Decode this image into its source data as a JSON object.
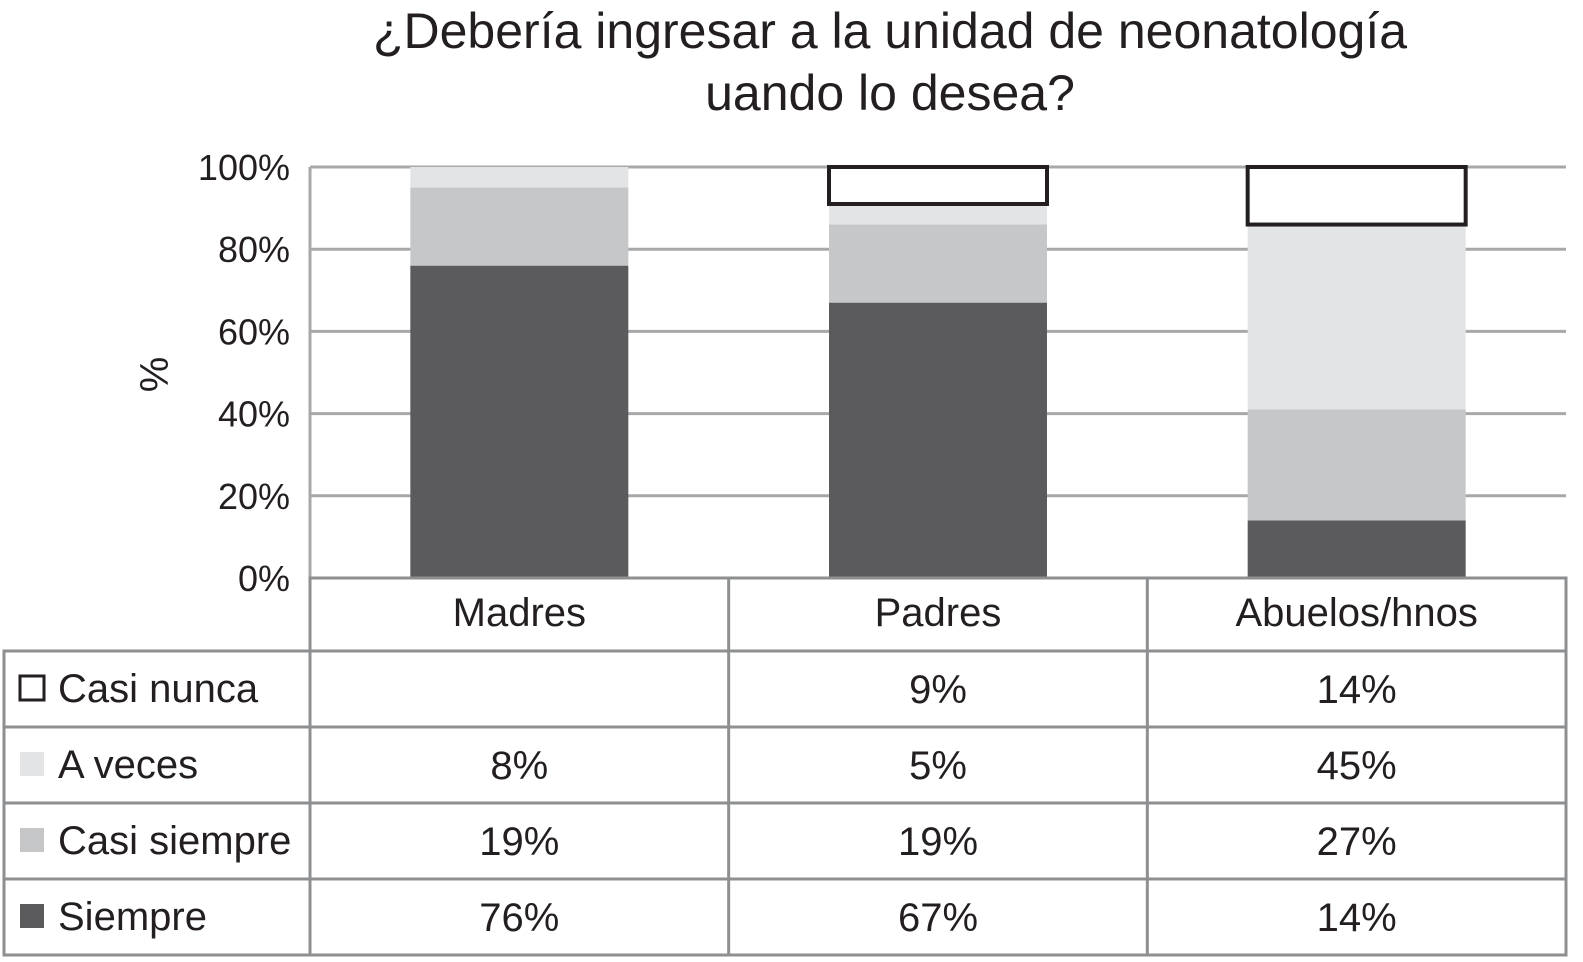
{
  "chart_data": {
    "type": "bar",
    "stacked": true,
    "title": "¿Debería ingresar a la unidad de neonatología uando lo desea?",
    "title_lines": [
      "¿Debería ingresar a la unidad de neonatología",
      "uando lo desea?"
    ],
    "ylabel": "%",
    "xlabel": "",
    "ylim": [
      0,
      100
    ],
    "yticks": [
      "0%",
      "20%",
      "40%",
      "60%",
      "80%",
      "100%"
    ],
    "ytick_values": [
      0,
      20,
      40,
      60,
      80,
      100
    ],
    "grid": true,
    "categories": [
      "Madres",
      "Padres",
      "Abuelos/hnos"
    ],
    "series": [
      {
        "name": "Siempre",
        "color": "#5b5b5d",
        "values": [
          76,
          67,
          14
        ],
        "labels": [
          "76%",
          "67%",
          "14%"
        ]
      },
      {
        "name": "Casi siempre",
        "color": "#c6c7c9",
        "values": [
          19,
          19,
          27
        ],
        "labels": [
          "19%",
          "19%",
          "27%"
        ]
      },
      {
        "name": "A veces",
        "color": "#e3e4e6",
        "values": [
          8,
          5,
          45
        ],
        "labels": [
          "8%",
          "5%",
          "45%"
        ]
      },
      {
        "name": "Casi nunca",
        "color": "#ffffff",
        "values": [
          0,
          9,
          14
        ],
        "labels": [
          "",
          "9%",
          "14%"
        ]
      }
    ],
    "table_row_order": [
      "Casi nunca",
      "A veces",
      "Casi siempre",
      "Siempre"
    ]
  }
}
